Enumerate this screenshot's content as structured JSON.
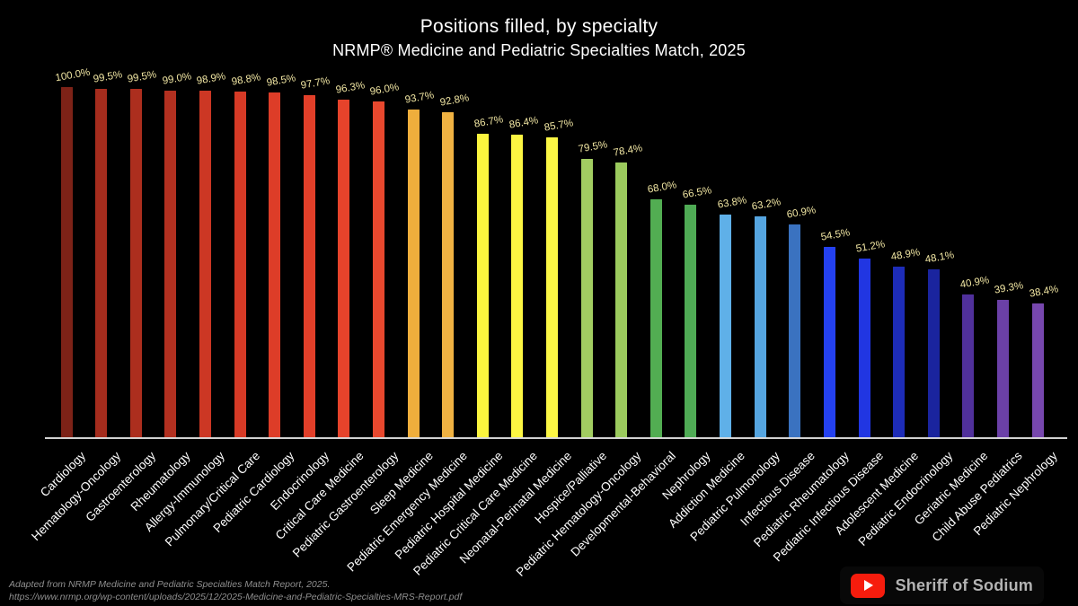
{
  "header": {
    "title": "Positions filled, by specialty",
    "subtitle": "NRMP® Medicine and Pediatric Specialties Match, 2025"
  },
  "chart_data": {
    "type": "bar",
    "title": "Positions filled, by specialty",
    "subtitle": "NRMP® Medicine and Pediatric Specialties Match, 2025",
    "categories": [
      "Cardiology",
      "Hematology-Oncology",
      "Gastroenterology",
      "Rheumatology",
      "Allergy-Immunology",
      "Pulmonary/Critical Care",
      "Pediatric Cardiology",
      "Endocrinology",
      "Critical Care Medicine",
      "Pediatric Gastroenterology",
      "Sleep Medicine",
      "Pediatric Emergency Medicine",
      "Pediatric Hospital Medicine",
      "Pediatric Critical Care Medicine",
      "Neonatal-Perinatal Medicine",
      "Hospice/Palliative",
      "Pediatric Hematology-Oncology",
      "Developmental-Behavioral",
      "Nephrology",
      "Addiction Medicine",
      "Pediatric Pulmonology",
      "Infectious Disease",
      "Pediatric Rheumatology",
      "Pediatric Infectious Disease",
      "Adolescent Medicine",
      "Pediatric Endocrinology",
      "Geriatric Medicine",
      "Child Abuse Pediatrics",
      "Pediatric Nephrology"
    ],
    "values": [
      100.0,
      99.5,
      99.5,
      99.0,
      98.9,
      98.8,
      98.5,
      97.7,
      96.3,
      96.0,
      93.7,
      92.8,
      86.7,
      86.4,
      85.7,
      79.5,
      78.4,
      68.0,
      66.5,
      63.8,
      63.2,
      60.9,
      54.5,
      51.2,
      48.9,
      48.1,
      40.9,
      39.3,
      38.4
    ],
    "bar_colors": [
      "#7D2217",
      "#A52C1D",
      "#AC2E1E",
      "#B23020",
      "#CC3724",
      "#D63A26",
      "#DD3D28",
      "#E23F29",
      "#E6432B",
      "#E8482E",
      "#EFAE3C",
      "#F0B242",
      "#FBF53E",
      "#FCF642",
      "#FCF745",
      "#A2CD61",
      "#9BCA5D",
      "#52AD52",
      "#4FAB55",
      "#5FB0E8",
      "#55A5E0",
      "#3A72C0",
      "#2441F0",
      "#2136E2",
      "#1D2CB8",
      "#1A249E",
      "#50309B",
      "#6B40A7",
      "#7747AE"
    ],
    "ylim": [
      0,
      100
    ],
    "value_label_suffix": "%",
    "value_label_color": "#F0E5A2",
    "axis_label_color": "#FFFFFF",
    "grid": false,
    "legend": false
  },
  "footer": {
    "source_line1": "Adapted from NRMP Medicine and Pediatric Specialties Match Report, 2025.",
    "source_line2": "https://www.nrmp.org/wp-content/uploads/2025/12/2025-Medicine-and-Pediatric-Specialties-MRS-Report.pdf"
  },
  "branding": {
    "channel_name": "Sheriff of Sodium",
    "icon": "youtube-play-icon",
    "icon_color": "#F61C0D"
  },
  "colors": {
    "background": "#000000",
    "baseline": "#DCDCDC",
    "footer_text": "#8F8F8F"
  }
}
